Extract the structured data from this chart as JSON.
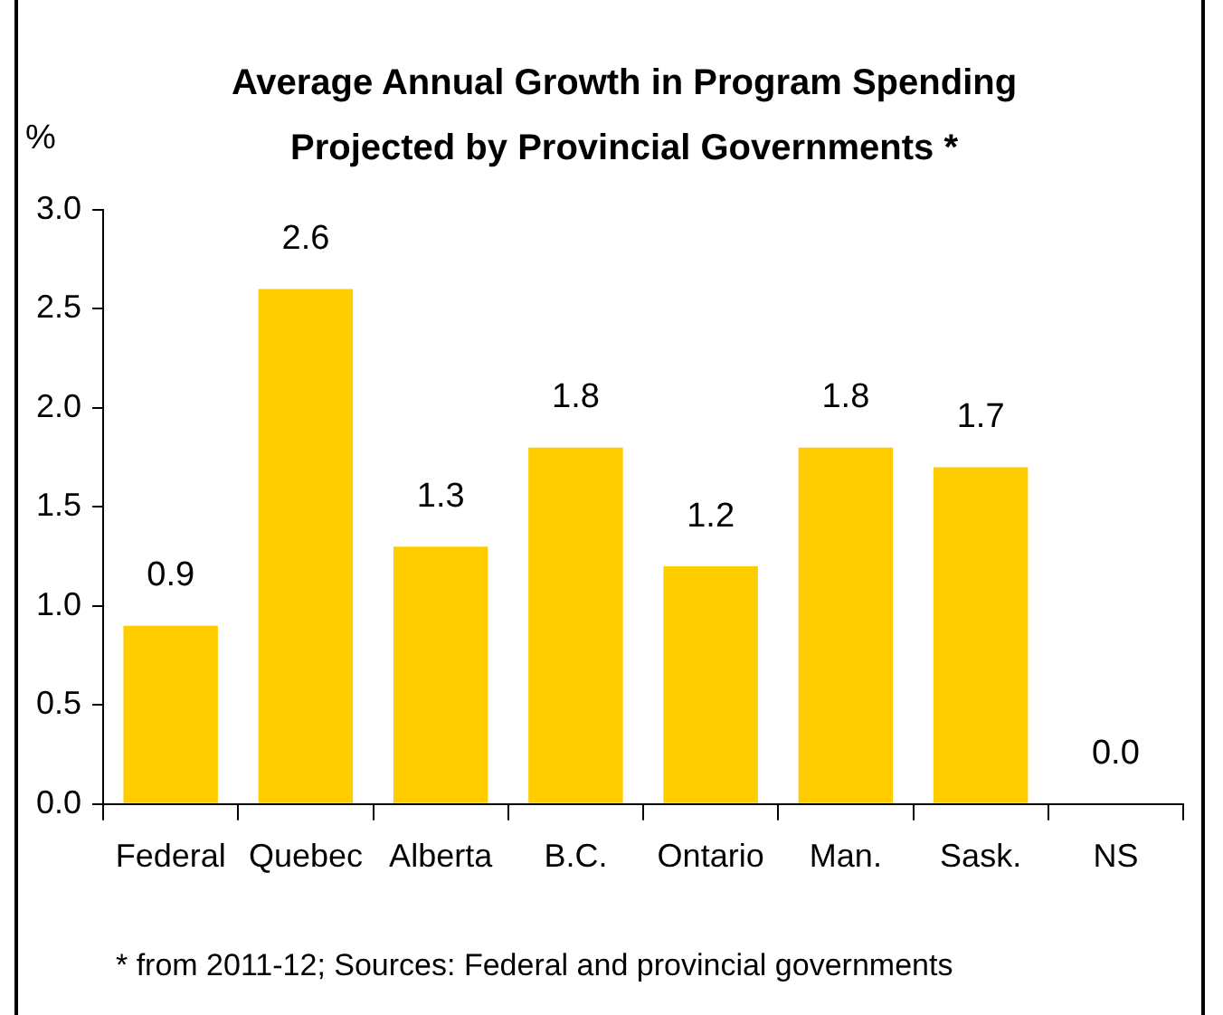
{
  "chart_data": {
    "type": "bar",
    "title": "Average Annual Growth in Program Spending Projected by Provincial Governments *",
    "ylabel": "%",
    "categories": [
      "Federal",
      "Quebec",
      "Alberta",
      "B.C.",
      "Ontario",
      "Man.",
      "Sask.",
      "NS"
    ],
    "values": [
      0.9,
      2.6,
      1.3,
      1.8,
      1.2,
      1.8,
      1.7,
      0.0
    ],
    "value_labels": [
      "0.9",
      "2.6",
      "1.3",
      "1.8",
      "1.2",
      "1.8",
      "1.7",
      "0.0"
    ],
    "color": "#ffcc00",
    "ylim": [
      0,
      3
    ],
    "yticks": [
      {
        "value": 0,
        "label": "0.0"
      },
      {
        "value": 0.5,
        "label": "0.5"
      },
      {
        "value": 1,
        "label": "1.0"
      },
      {
        "value": 1.5,
        "label": "1.5"
      },
      {
        "value": 2,
        "label": "2.0"
      },
      {
        "value": 2.5,
        "label": "2.5"
      },
      {
        "value": 3,
        "label": "3.0"
      }
    ],
    "grid": false,
    "annotations": [
      "* from 2011-12; Sources: Federal and provincial governments"
    ]
  }
}
